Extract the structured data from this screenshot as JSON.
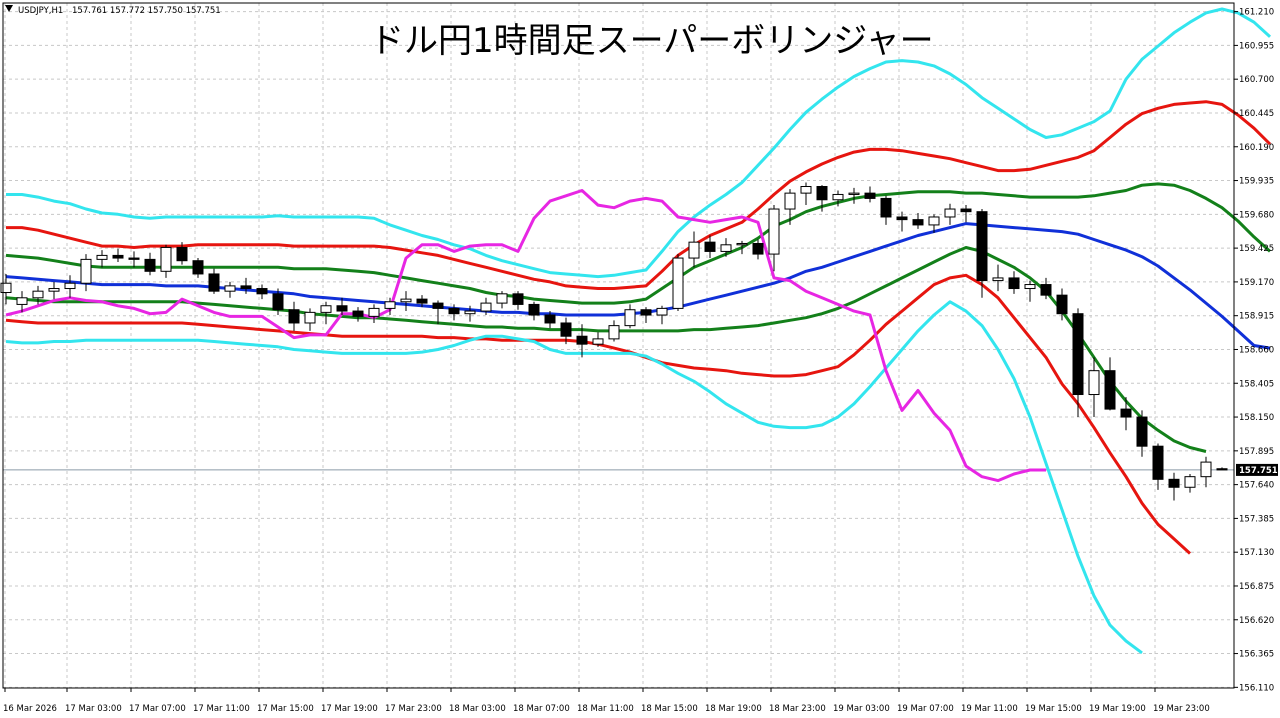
{
  "header": {
    "symbol": "USDJPY,H1",
    "ohlc": "157.761 157.772 157.750 157.751"
  },
  "title": "ドル円1時間足スーパーボリンジャー",
  "price_tag": "157.751",
  "colors": {
    "background": "#ffffff",
    "grid": "#c8c8c8",
    "axis": "#000000",
    "bull_body": "#ffffff",
    "bear_body": "#000000",
    "band_3sigma": "#33e5ee",
    "band_2sigma": "#e6150f",
    "band_1sigma": "#13801a",
    "mid_line": "#1030d8",
    "lagging_span": "#e726e3",
    "price_tag_bg": "#000000"
  },
  "chart_data": {
    "type": "line",
    "title": "ドル円1時間足スーパーボリンジャー",
    "xlabel": "",
    "ylabel": "",
    "ylim": [
      156.105,
      161.275
    ],
    "grid": true,
    "y_ticks": [
      "161.210",
      "160.955",
      "160.700",
      "160.445",
      "160.190",
      "159.935",
      "159.680",
      "159.425",
      "159.170",
      "158.915",
      "158.660",
      "158.405",
      "158.150",
      "157.895",
      "157.640",
      "157.385",
      "157.130",
      "156.875",
      "156.620",
      "156.365",
      "156.110"
    ],
    "x_ticks": [
      "16 Mar 2026",
      "17 Mar 03:00",
      "17 Mar 07:00",
      "17 Mar 11:00",
      "17 Mar 15:00",
      "17 Mar 19:00",
      "17 Mar 23:00",
      "18 Mar 03:00",
      "18 Mar 07:00",
      "18 Mar 11:00",
      "18 Mar 15:00",
      "18 Mar 19:00",
      "18 Mar 23:00",
      "19 Mar 03:00",
      "19 Mar 07:00",
      "19 Mar 11:00",
      "19 Mar 15:00",
      "19 Mar 19:00",
      "19 Mar 23:00"
    ],
    "current_price": 157.751,
    "candles": [
      [
        159.09,
        159.23,
        159.0,
        159.16
      ],
      [
        159.0,
        159.1,
        158.94,
        159.05
      ],
      [
        159.05,
        159.14,
        159.0,
        159.1
      ],
      [
        159.1,
        159.17,
        159.04,
        159.12
      ],
      [
        159.12,
        159.22,
        159.05,
        159.16
      ],
      [
        159.16,
        159.38,
        159.1,
        159.34
      ],
      [
        159.34,
        159.41,
        159.28,
        159.37
      ],
      [
        159.37,
        159.42,
        159.32,
        159.35
      ],
      [
        159.35,
        159.4,
        159.28,
        159.34
      ],
      [
        159.34,
        159.39,
        159.22,
        159.25
      ],
      [
        159.25,
        159.45,
        159.2,
        159.43
      ],
      [
        159.43,
        159.47,
        159.3,
        159.33
      ],
      [
        159.33,
        159.35,
        159.2,
        159.23
      ],
      [
        159.23,
        159.27,
        159.08,
        159.1
      ],
      [
        159.1,
        159.17,
        159.05,
        159.14
      ],
      [
        159.14,
        159.2,
        159.08,
        159.12
      ],
      [
        159.12,
        159.15,
        159.04,
        159.08
      ],
      [
        159.08,
        159.12,
        158.92,
        158.96
      ],
      [
        158.96,
        159.02,
        158.8,
        158.86
      ],
      [
        158.86,
        158.97,
        158.8,
        158.94
      ],
      [
        158.94,
        159.02,
        158.85,
        158.99
      ],
      [
        158.99,
        159.05,
        158.92,
        158.95
      ],
      [
        158.95,
        158.98,
        158.87,
        158.91
      ],
      [
        158.91,
        159.0,
        158.86,
        158.97
      ],
      [
        158.97,
        159.05,
        158.92,
        159.02
      ],
      [
        159.02,
        159.1,
        158.95,
        159.04
      ],
      [
        159.04,
        159.07,
        158.98,
        159.01
      ],
      [
        159.01,
        159.03,
        158.85,
        158.97
      ],
      [
        158.97,
        159.0,
        158.88,
        158.93
      ],
      [
        158.93,
        158.99,
        158.87,
        158.95
      ],
      [
        158.95,
        159.05,
        158.92,
        159.01
      ],
      [
        159.01,
        159.1,
        158.97,
        159.08
      ],
      [
        159.08,
        159.1,
        158.96,
        159.0
      ],
      [
        159.0,
        159.02,
        158.88,
        158.92
      ],
      [
        158.92,
        158.95,
        158.82,
        158.86
      ],
      [
        158.86,
        158.9,
        158.7,
        158.76
      ],
      [
        158.76,
        158.85,
        158.6,
        158.7
      ],
      [
        158.7,
        158.79,
        158.68,
        158.74
      ],
      [
        158.74,
        158.88,
        158.72,
        158.84
      ],
      [
        158.84,
        159.0,
        158.82,
        158.96
      ],
      [
        158.96,
        158.98,
        158.86,
        158.92
      ],
      [
        158.92,
        158.99,
        158.85,
        158.97
      ],
      [
        158.97,
        159.38,
        158.95,
        159.35
      ],
      [
        159.35,
        159.55,
        159.28,
        159.47
      ],
      [
        159.47,
        159.52,
        159.35,
        159.4
      ],
      [
        159.4,
        159.5,
        159.36,
        159.45
      ],
      [
        159.45,
        159.48,
        159.38,
        159.46
      ],
      [
        159.46,
        159.49,
        159.34,
        159.38
      ],
      [
        159.38,
        159.75,
        159.25,
        159.72
      ],
      [
        159.72,
        159.87,
        159.6,
        159.84
      ],
      [
        159.84,
        159.92,
        159.75,
        159.89
      ],
      [
        159.89,
        159.9,
        159.7,
        159.79
      ],
      [
        159.79,
        159.86,
        159.74,
        159.83
      ],
      [
        159.83,
        159.88,
        159.76,
        159.84
      ],
      [
        159.84,
        159.89,
        159.77,
        159.8
      ],
      [
        159.8,
        159.82,
        159.6,
        159.66
      ],
      [
        159.66,
        159.7,
        159.55,
        159.64
      ],
      [
        159.64,
        159.69,
        159.57,
        159.6
      ],
      [
        159.6,
        159.68,
        159.54,
        159.66
      ],
      [
        159.66,
        159.76,
        159.6,
        159.72
      ],
      [
        159.72,
        159.75,
        159.62,
        159.7
      ],
      [
        159.7,
        159.72,
        159.05,
        159.18
      ],
      [
        159.18,
        159.3,
        159.1,
        159.2
      ],
      [
        159.2,
        159.25,
        159.08,
        159.12
      ],
      [
        159.12,
        159.18,
        159.02,
        159.15
      ],
      [
        159.15,
        159.2,
        159.04,
        159.07
      ],
      [
        159.07,
        159.12,
        158.88,
        158.93
      ],
      [
        158.93,
        158.97,
        158.15,
        158.32
      ],
      [
        158.32,
        158.6,
        158.15,
        158.5
      ],
      [
        158.5,
        158.6,
        158.2,
        158.21
      ],
      [
        158.21,
        158.3,
        158.05,
        158.15
      ],
      [
        158.15,
        158.2,
        157.85,
        157.93
      ],
      [
        157.93,
        157.95,
        157.6,
        157.68
      ],
      [
        157.68,
        157.73,
        157.52,
        157.62
      ],
      [
        157.62,
        157.72,
        157.58,
        157.7
      ],
      [
        157.7,
        157.85,
        157.62,
        157.81
      ],
      [
        157.76,
        157.77,
        157.75,
        157.751
      ]
    ],
    "series": [
      {
        "name": "",
        "values": [
          159.83,
          159.83,
          159.81,
          159.78,
          159.76,
          159.72,
          159.69,
          159.68,
          159.66,
          159.65,
          159.66,
          159.66,
          159.66,
          159.66,
          159.66,
          159.66,
          159.66,
          159.67,
          159.66,
          159.66,
          159.66,
          159.66,
          159.66,
          159.65,
          159.6,
          159.56,
          159.52,
          159.49,
          159.45,
          159.42,
          159.37,
          159.33,
          159.3,
          159.27,
          159.24,
          159.23,
          159.22,
          159.21,
          159.22,
          159.24,
          159.26,
          159.4,
          159.55,
          159.66,
          159.75,
          159.83,
          159.92,
          160.05,
          160.18,
          160.32,
          160.45,
          160.55,
          160.64,
          160.72,
          160.78,
          160.83,
          160.84,
          160.83,
          160.8,
          160.74,
          160.66,
          160.56,
          160.48,
          160.4,
          160.32,
          160.26,
          160.28,
          160.33,
          160.38,
          160.46,
          160.7,
          160.85,
          160.95,
          161.05,
          161.13,
          161.2,
          161.23,
          161.2,
          161.13,
          161.02
        ]
      },
      {
        "name": "",
        "values": [
          159.58,
          159.58,
          159.56,
          159.53,
          159.5,
          159.47,
          159.44,
          159.44,
          159.43,
          159.44,
          159.44,
          159.44,
          159.45,
          159.45,
          159.45,
          159.45,
          159.45,
          159.45,
          159.44,
          159.44,
          159.44,
          159.44,
          159.44,
          159.44,
          159.43,
          159.41,
          159.39,
          159.37,
          159.34,
          159.31,
          159.28,
          159.25,
          159.22,
          159.19,
          159.17,
          159.14,
          159.13,
          159.12,
          159.12,
          159.13,
          159.14,
          159.25,
          159.37,
          159.45,
          159.52,
          159.57,
          159.62,
          159.72,
          159.83,
          159.93,
          160.0,
          160.06,
          160.11,
          160.15,
          160.17,
          160.17,
          160.16,
          160.14,
          160.12,
          160.1,
          160.07,
          160.04,
          160.01,
          160.01,
          160.02,
          160.05,
          160.08,
          160.11,
          160.16,
          160.26,
          160.36,
          160.44,
          160.48,
          160.51,
          160.52,
          160.53,
          160.51,
          160.43,
          160.33,
          160.21
        ]
      },
      {
        "name": "",
        "values": [
          159.37,
          159.36,
          159.35,
          159.33,
          159.31,
          159.29,
          159.28,
          159.28,
          159.28,
          159.28,
          159.28,
          159.28,
          159.28,
          159.28,
          159.28,
          159.28,
          159.28,
          159.28,
          159.27,
          159.27,
          159.27,
          159.26,
          159.25,
          159.24,
          159.22,
          159.2,
          159.18,
          159.16,
          159.14,
          159.12,
          159.09,
          159.07,
          159.06,
          159.04,
          159.03,
          159.02,
          159.01,
          159.01,
          159.01,
          159.02,
          159.04,
          159.12,
          159.2,
          159.28,
          159.33,
          159.38,
          159.43,
          159.5,
          159.59,
          159.64,
          159.7,
          159.74,
          159.77,
          159.8,
          159.82,
          159.83,
          159.84,
          159.85,
          159.85,
          159.85,
          159.84,
          159.84,
          159.83,
          159.82,
          159.81,
          159.81,
          159.81,
          159.81,
          159.82,
          159.84,
          159.86,
          159.9,
          159.91,
          159.9,
          159.86,
          159.8,
          159.73,
          159.63,
          159.51,
          159.4
        ]
      },
      {
        "name": "",
        "values": [
          159.21,
          159.2,
          159.19,
          159.18,
          159.17,
          159.16,
          159.15,
          159.15,
          159.15,
          159.15,
          159.14,
          159.14,
          159.14,
          159.13,
          159.12,
          159.11,
          159.1,
          159.09,
          159.08,
          159.06,
          159.05,
          159.04,
          159.03,
          159.02,
          159.01,
          159.0,
          158.99,
          158.98,
          158.97,
          158.96,
          158.95,
          158.94,
          158.94,
          158.93,
          158.93,
          158.92,
          158.92,
          158.92,
          158.92,
          158.93,
          158.94,
          158.96,
          158.98,
          159.01,
          159.04,
          159.07,
          159.1,
          159.13,
          159.16,
          159.2,
          159.25,
          159.28,
          159.32,
          159.36,
          159.4,
          159.44,
          159.48,
          159.52,
          159.55,
          159.58,
          159.61,
          159.6,
          159.59,
          159.58,
          159.57,
          159.56,
          159.55,
          159.53,
          159.49,
          159.45,
          159.41,
          159.36,
          159.29,
          159.2,
          159.11,
          159.01,
          158.91,
          158.8,
          158.69,
          158.67
        ]
      },
      {
        "name": "",
        "values": [
          159.05,
          159.04,
          159.03,
          159.02,
          159.02,
          159.02,
          159.02,
          159.02,
          159.02,
          159.02,
          159.02,
          159.02,
          159.01,
          159.0,
          158.99,
          158.98,
          158.97,
          158.96,
          158.95,
          158.93,
          158.92,
          158.91,
          158.9,
          158.9,
          158.89,
          158.88,
          158.87,
          158.86,
          158.85,
          158.84,
          158.83,
          158.83,
          158.82,
          158.82,
          158.81,
          158.81,
          158.81,
          158.8,
          158.8,
          158.8,
          158.8,
          158.8,
          158.8,
          158.81,
          158.81,
          158.82,
          158.83,
          158.84,
          158.86,
          158.88,
          158.9,
          158.93,
          158.97,
          159.02,
          159.08,
          159.14,
          159.2,
          159.26,
          159.32,
          159.38,
          159.43,
          159.4,
          159.34,
          159.28,
          159.2,
          159.1,
          158.95,
          158.78,
          158.6,
          158.42,
          158.27,
          158.14,
          158.05,
          157.97,
          157.92,
          157.89
        ]
      },
      {
        "name": "",
        "values": [
          158.88,
          158.87,
          158.86,
          158.86,
          158.86,
          158.86,
          158.86,
          158.86,
          158.86,
          158.86,
          158.86,
          158.86,
          158.85,
          158.84,
          158.83,
          158.82,
          158.81,
          158.8,
          158.79,
          158.78,
          158.77,
          158.76,
          158.76,
          158.76,
          158.76,
          158.76,
          158.76,
          158.75,
          158.75,
          158.74,
          158.74,
          158.73,
          158.73,
          158.73,
          158.73,
          158.73,
          158.72,
          158.7,
          158.67,
          158.64,
          158.6,
          158.56,
          158.54,
          158.52,
          158.51,
          158.5,
          158.48,
          158.47,
          158.46,
          158.46,
          158.47,
          158.5,
          158.53,
          158.62,
          158.73,
          158.85,
          158.95,
          159.05,
          159.15,
          159.2,
          159.22,
          159.15,
          159.05,
          158.9,
          158.75,
          158.6,
          158.4,
          158.25,
          158.07,
          157.88,
          157.7,
          157.5,
          157.34,
          157.23,
          157.12
        ]
      },
      {
        "name": "",
        "values": [
          158.72,
          158.71,
          158.71,
          158.72,
          158.72,
          158.73,
          158.73,
          158.73,
          158.73,
          158.73,
          158.73,
          158.73,
          158.73,
          158.72,
          158.71,
          158.7,
          158.69,
          158.68,
          158.66,
          158.65,
          158.64,
          158.63,
          158.63,
          158.63,
          158.63,
          158.63,
          158.64,
          158.66,
          158.69,
          158.73,
          158.76,
          158.76,
          158.74,
          158.72,
          158.66,
          158.63,
          158.63,
          158.63,
          158.63,
          158.63,
          158.61,
          158.55,
          158.48,
          158.42,
          158.34,
          158.25,
          158.18,
          158.11,
          158.08,
          158.07,
          158.07,
          158.09,
          158.15,
          158.25,
          158.38,
          158.52,
          158.66,
          158.8,
          158.92,
          159.02,
          158.95,
          158.84,
          158.66,
          158.44,
          158.15,
          157.8,
          157.45,
          157.1,
          156.8,
          156.58,
          156.46,
          156.37
        ]
      },
      {
        "name": "",
        "values": [
          158.92,
          158.95,
          158.99,
          159.03,
          159.05,
          159.03,
          159.02,
          158.99,
          158.97,
          158.93,
          158.94,
          159.04,
          158.99,
          158.94,
          158.91,
          158.91,
          158.91,
          158.83,
          158.75,
          158.77,
          158.77,
          158.93,
          158.93,
          158.9,
          158.96,
          159.35,
          159.45,
          159.45,
          159.4,
          159.44,
          159.45,
          159.45,
          159.4,
          159.65,
          159.78,
          159.82,
          159.86,
          159.75,
          159.73,
          159.78,
          159.8,
          159.78,
          159.66,
          159.64,
          159.62,
          159.64,
          159.66,
          159.62,
          159.2,
          159.18,
          159.1,
          159.05,
          159.0,
          158.95,
          158.92,
          158.5,
          158.2,
          158.35,
          158.18,
          158.05,
          157.78,
          157.7,
          157.67,
          157.72,
          157.75,
          157.75
        ]
      }
    ]
  }
}
